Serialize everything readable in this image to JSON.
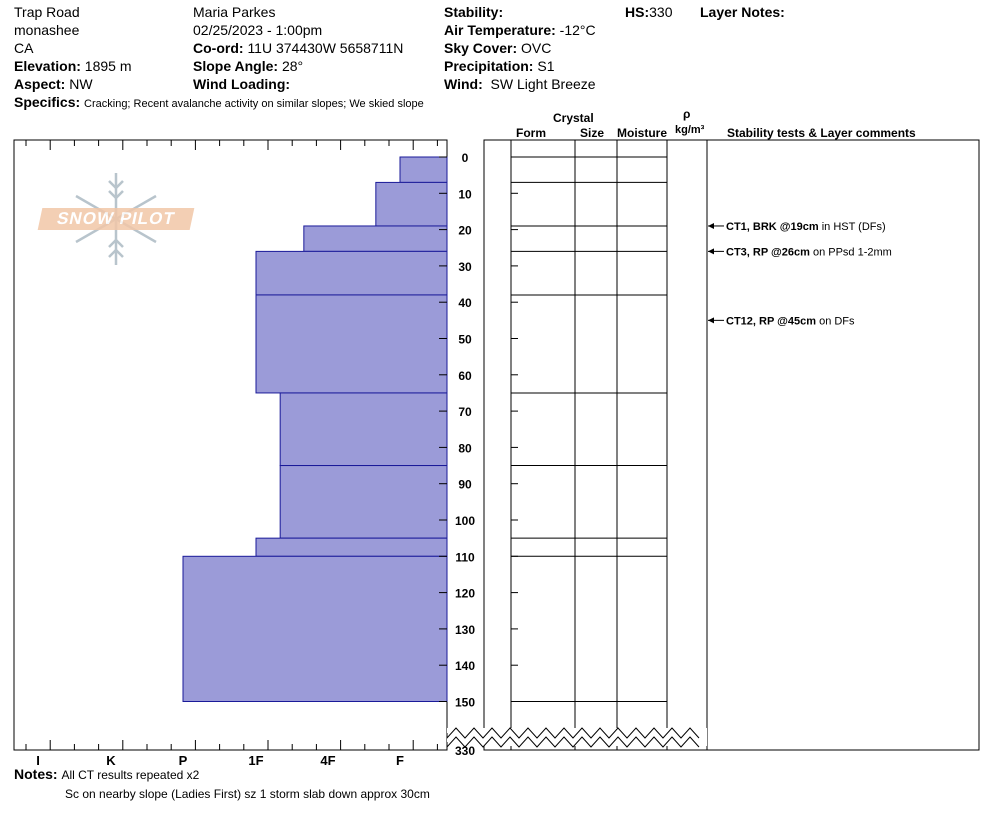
{
  "header": {
    "location": "Trap Road",
    "range": "monashee",
    "region": "CA",
    "elevation_label": "Elevation:",
    "elevation_value": "1895 m",
    "aspect_label": "Aspect:",
    "aspect_value": "NW",
    "observer": "Maria Parkes",
    "datetime": "02/25/2023 - 1:00pm",
    "coord_label": "Co-ord:",
    "coord_value": "11U 374430W 5658711N",
    "slope_label": "Slope Angle:",
    "slope_value": "28°",
    "wind_loading_label": "Wind Loading:",
    "wind_loading_value": "",
    "stability_label": "Stability:",
    "stability_value": "",
    "air_temp_label": "Air Temperature:",
    "air_temp_value": "-12°C",
    "sky_label": "Sky Cover:",
    "sky_value": "OVC",
    "precip_label": "Precipitation:",
    "precip_value": "S1",
    "wind_label": "Wind:",
    "wind_value": "SW Light Breeze",
    "hs_label": "HS:",
    "hs_value": "330",
    "layer_notes_label": "Layer Notes:",
    "specifics_label": "Specifics:",
    "specifics_value": "Cracking;  Recent avalanche activity on similar slopes;  We skied slope"
  },
  "columns": {
    "crystal": "Crystal",
    "form": "Form",
    "size": "Size",
    "moisture": "Moisture",
    "rho": "ρ",
    "density_unit": "kg/m³",
    "tests": "Stability tests & Layer comments"
  },
  "logo_text": "SNOW PILOT",
  "notes": {
    "label": "Notes:",
    "line1": "All CT results repeated x2",
    "line2": "Sc on nearby slope (Ladies First) sz 1 storm slab down approx 30cm"
  },
  "chart_data": {
    "type": "bar",
    "orientation": "horizontal",
    "description_axis": "depth_cm",
    "hardness_scale": [
      "I",
      "K",
      "P",
      "1F",
      "4F",
      "F"
    ],
    "depth_ticks": [
      0,
      10,
      20,
      30,
      40,
      50,
      60,
      70,
      80,
      90,
      100,
      110,
      120,
      130,
      140,
      150
    ],
    "hs_label": "330",
    "layers": [
      {
        "top": 0,
        "bottom": 7,
        "hardness": "F"
      },
      {
        "top": 7,
        "bottom": 19,
        "hardness": "F+"
      },
      {
        "top": 19,
        "bottom": 26,
        "hardness": "4F+"
      },
      {
        "top": 26,
        "bottom": 38,
        "hardness": "1F"
      },
      {
        "top": 38,
        "bottom": 65,
        "hardness": "1F"
      },
      {
        "top": 65,
        "bottom": 85,
        "hardness": "1F-"
      },
      {
        "top": 85,
        "bottom": 105,
        "hardness": "1F-"
      },
      {
        "top": 105,
        "bottom": 110,
        "hardness": "1F"
      },
      {
        "top": 110,
        "bottom": 150,
        "hardness": "P"
      }
    ],
    "tests": [
      {
        "depth": 19,
        "bold": "CT1, BRK @19cm",
        "text": "in HST (DFs)"
      },
      {
        "depth": 26,
        "bold": "CT3, RP @26cm",
        "text": "on PPsd 1-2mm"
      },
      {
        "depth": 45,
        "bold": "CT12, RP @45cm",
        "text": "on DFs"
      }
    ]
  }
}
